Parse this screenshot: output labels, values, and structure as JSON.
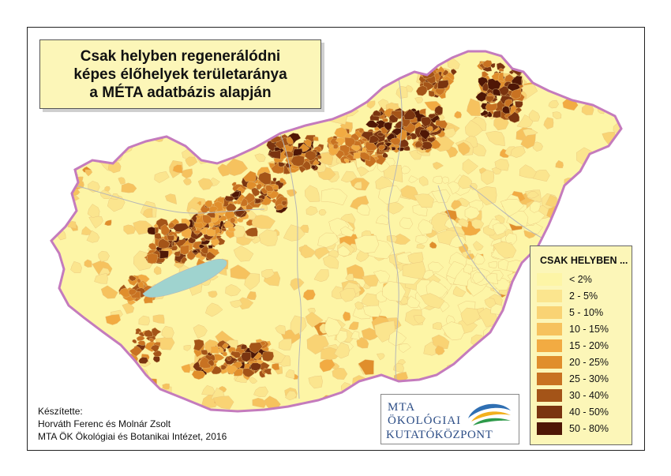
{
  "title": {
    "line1": "Csak helyben regenerálódni",
    "line2": "képes élőhelyek területaránya",
    "line3": "a MÉTA adatbázis alapján"
  },
  "legend": {
    "title": "CSAK HELYBEN ...",
    "classes": [
      {
        "label": "< 2%",
        "color": "#fdf5a6"
      },
      {
        "label": "2 - 5%",
        "color": "#fbe58e"
      },
      {
        "label": "5 - 10%",
        "color": "#f9d374"
      },
      {
        "label": "10 - 15%",
        "color": "#f6c25e"
      },
      {
        "label": "15 - 20%",
        "color": "#f2ab42"
      },
      {
        "label": "20 - 25%",
        "color": "#e08e2c"
      },
      {
        "label": "25 - 30%",
        "color": "#c87222"
      },
      {
        "label": "30 - 40%",
        "color": "#a45418"
      },
      {
        "label": "40 - 50%",
        "color": "#7a3410"
      },
      {
        "label": "50 - 80%",
        "color": "#4f1706"
      }
    ]
  },
  "credits": {
    "label": "Készítette:",
    "authors": "Horváth Ferenc és Molnár Zsolt",
    "institute": "MTA ÖK Ökológiai és Botanikai Intézet, 2016"
  },
  "logo": {
    "line1": "MTA",
    "line2": "ÖKOLÓGIAI",
    "line3": "KUTATÓKÖZPONT"
  },
  "colors": {
    "border": "#c47bbd",
    "lake": "#9fd3cf",
    "river": "#b7b7b7"
  }
}
